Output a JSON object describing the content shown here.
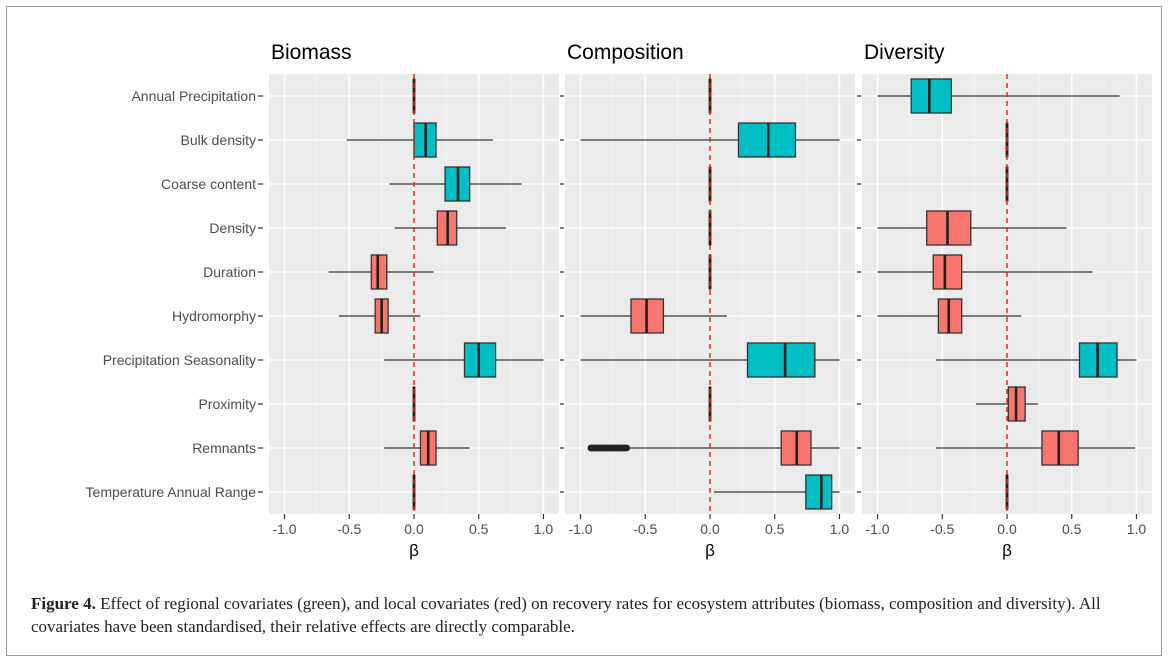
{
  "chart_data": {
    "type": "boxplot",
    "covariates": [
      "Annual Precipitation",
      "Bulk density",
      "Coarse content",
      "Density",
      "Duration",
      "Hydromorphy",
      "Precipitation Seasonality",
      "Proximity",
      "Remnants",
      "Temperature Annual Range"
    ],
    "xticks": [
      "-1.0",
      "-0.5",
      "0.0",
      "0.5",
      "1.0"
    ],
    "xlim": [
      -1.12,
      1.12
    ],
    "xlabel": "β",
    "reference_line": 0,
    "colors": {
      "regional": "#00BFC4",
      "local": "#F8766D",
      "reference": "#e8231e",
      "panel_bg": "#ebebeb"
    },
    "panels": [
      {
        "title": "Biomass",
        "boxes": [
          {
            "q1": -0.005,
            "median": 0,
            "q3": 0.005,
            "wmin": -0.005,
            "wmax": 0.005,
            "group": "local"
          },
          {
            "q1": 0.0,
            "median": 0.09,
            "q3": 0.17,
            "wmin": -0.52,
            "wmax": 0.61,
            "group": "regional"
          },
          {
            "q1": 0.24,
            "median": 0.34,
            "q3": 0.43,
            "wmin": -0.19,
            "wmax": 0.83,
            "group": "regional"
          },
          {
            "q1": 0.18,
            "median": 0.26,
            "q3": 0.33,
            "wmin": -0.15,
            "wmax": 0.71,
            "group": "local"
          },
          {
            "q1": -0.33,
            "median": -0.28,
            "q3": -0.21,
            "wmin": -0.66,
            "wmax": 0.15,
            "group": "local"
          },
          {
            "q1": -0.3,
            "median": -0.25,
            "q3": -0.2,
            "wmin": -0.58,
            "wmax": 0.05,
            "group": "local"
          },
          {
            "q1": 0.39,
            "median": 0.5,
            "q3": 0.63,
            "wmin": -0.23,
            "wmax": 1.0,
            "group": "regional"
          },
          {
            "q1": -0.005,
            "median": 0,
            "q3": 0.005,
            "wmin": -0.005,
            "wmax": 0.005,
            "group": "local"
          },
          {
            "q1": 0.05,
            "median": 0.11,
            "q3": 0.17,
            "wmin": -0.23,
            "wmax": 0.43,
            "group": "local"
          },
          {
            "q1": -0.005,
            "median": 0,
            "q3": 0.005,
            "wmin": -0.005,
            "wmax": 0.005,
            "group": "local"
          }
        ]
      },
      {
        "title": "Composition",
        "boxes": [
          {
            "q1": -0.005,
            "median": 0,
            "q3": 0.005,
            "wmin": -0.005,
            "wmax": 0.005,
            "group": "local"
          },
          {
            "q1": 0.22,
            "median": 0.45,
            "q3": 0.66,
            "wmin": -1.0,
            "wmax": 1.0,
            "group": "regional"
          },
          {
            "q1": -0.005,
            "median": 0,
            "q3": 0.005,
            "wmin": -0.005,
            "wmax": 0.005,
            "group": "local"
          },
          {
            "q1": -0.005,
            "median": 0,
            "q3": 0.005,
            "wmin": -0.005,
            "wmax": 0.005,
            "group": "local"
          },
          {
            "q1": -0.005,
            "median": 0,
            "q3": 0.005,
            "wmin": -0.005,
            "wmax": 0.005,
            "group": "local"
          },
          {
            "q1": -0.61,
            "median": -0.49,
            "q3": -0.36,
            "wmin": -1.0,
            "wmax": 0.13,
            "group": "local"
          },
          {
            "q1": 0.29,
            "median": 0.58,
            "q3": 0.81,
            "wmin": -1.0,
            "wmax": 1.0,
            "group": "regional"
          },
          {
            "q1": -0.005,
            "median": 0,
            "q3": 0.005,
            "wmin": -0.005,
            "wmax": 0.005,
            "group": "local"
          },
          {
            "q1": 0.55,
            "median": 0.67,
            "q3": 0.78,
            "wmin": -0.63,
            "wmax": 1.0,
            "group": "local",
            "outliers_from": -0.92,
            "outliers_to": -0.64
          },
          {
            "q1": 0.74,
            "median": 0.86,
            "q3": 0.94,
            "wmin": 0.03,
            "wmax": 1.0,
            "group": "regional"
          }
        ]
      },
      {
        "title": "Diversity",
        "boxes": [
          {
            "q1": -0.74,
            "median": -0.6,
            "q3": -0.43,
            "wmin": -1.0,
            "wmax": 0.87,
            "group": "regional"
          },
          {
            "q1": -0.005,
            "median": 0,
            "q3": 0.005,
            "wmin": -0.005,
            "wmax": 0.005,
            "group": "local"
          },
          {
            "q1": -0.005,
            "median": 0,
            "q3": 0.005,
            "wmin": -0.005,
            "wmax": 0.005,
            "group": "local"
          },
          {
            "q1": -0.62,
            "median": -0.46,
            "q3": -0.28,
            "wmin": -1.0,
            "wmax": 0.46,
            "group": "local"
          },
          {
            "q1": -0.57,
            "median": -0.48,
            "q3": -0.35,
            "wmin": -1.0,
            "wmax": 0.66,
            "group": "local"
          },
          {
            "q1": -0.53,
            "median": -0.45,
            "q3": -0.35,
            "wmin": -1.0,
            "wmax": 0.11,
            "group": "local"
          },
          {
            "q1": 0.56,
            "median": 0.7,
            "q3": 0.85,
            "wmin": -0.55,
            "wmax": 1.0,
            "group": "regional"
          },
          {
            "q1": 0.01,
            "median": 0.07,
            "q3": 0.14,
            "wmin": -0.24,
            "wmax": 0.24,
            "group": "local"
          },
          {
            "q1": 0.27,
            "median": 0.4,
            "q3": 0.55,
            "wmin": -0.55,
            "wmax": 0.99,
            "group": "local"
          },
          {
            "q1": -0.005,
            "median": 0,
            "q3": 0.005,
            "wmin": -0.005,
            "wmax": 0.005,
            "group": "local"
          }
        ]
      }
    ]
  },
  "caption": {
    "label": "Figure 4.",
    "text": " Effect of regional covariates (green), and local covariates (red) on recovery rates for ecosystem attributes (biomass, composition and diversity). All covariates have been standardised, their relative effects are directly comparable."
  }
}
